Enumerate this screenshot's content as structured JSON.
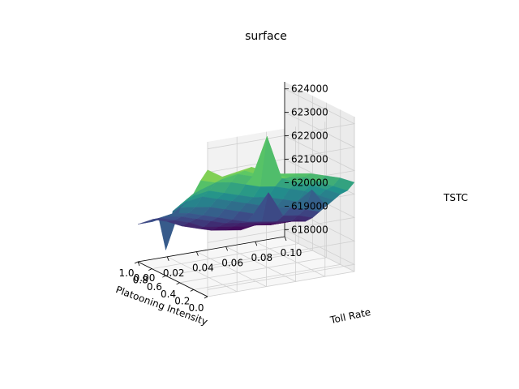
{
  "chart_data": {
    "type": "surface",
    "title": "surface",
    "xlabel": "Platooning Intensity",
    "ylabel": "Toll Rate",
    "zlabel": "TSTC",
    "x_ticks": [
      "0.0",
      "0.2",
      "0.4",
      "0.6",
      "0.8",
      "1.0"
    ],
    "y_ticks": [
      "0.00",
      "0.02",
      "0.04",
      "0.06",
      "0.08",
      "0.10"
    ],
    "z_ticks": [
      "618000",
      "619000",
      "620000",
      "621000",
      "622000",
      "623000",
      "624000"
    ],
    "xlim": [
      0.0,
      1.0
    ],
    "ylim": [
      0.0,
      0.1
    ],
    "zlim": [
      617700,
      624300
    ],
    "colormap": "viridis",
    "colormap_stops": [
      "#440154",
      "#3b528b",
      "#21918c",
      "#5ec962",
      "#fde725"
    ],
    "pane_color": "#f0f0f0",
    "grid": true,
    "x": [
      0.0,
      0.1,
      0.2,
      0.3,
      0.4,
      0.5,
      0.6,
      0.7,
      0.8,
      0.9,
      1.0
    ],
    "y": [
      0.0,
      0.01,
      0.02,
      0.03,
      0.04,
      0.05,
      0.06,
      0.07,
      0.08,
      0.09,
      0.1
    ],
    "z": [
      [
        623100,
        622700,
        622800,
        622900,
        622600,
        622400,
        622300,
        622200,
        622000,
        621800,
        621500
      ],
      [
        622500,
        622300,
        622500,
        622600,
        622300,
        622200,
        622000,
        621900,
        621600,
        621300,
        621000
      ],
      [
        621800,
        622000,
        622200,
        622300,
        622100,
        623700,
        621800,
        621500,
        621300,
        621000,
        620700
      ],
      [
        621400,
        621700,
        621900,
        621800,
        621600,
        621400,
        621300,
        621100,
        620900,
        620600,
        620300
      ],
      [
        621000,
        621300,
        621400,
        621200,
        621000,
        620800,
        620700,
        620500,
        620300,
        620700,
        619900
      ],
      [
        620600,
        620900,
        621000,
        620800,
        620600,
        620400,
        620200,
        620000,
        619900,
        619700,
        619500
      ],
      [
        618800,
        620500,
        620400,
        620300,
        620100,
        619900,
        619700,
        620500,
        619400,
        619300,
        619100
      ],
      [
        620000,
        620100,
        620000,
        619800,
        619600,
        619400,
        619200,
        619100,
        619000,
        618900,
        618800
      ],
      [
        619700,
        619800,
        619700,
        619500,
        619300,
        619100,
        619000,
        618900,
        618800,
        618700,
        618700
      ],
      [
        619500,
        619600,
        619400,
        619200,
        618900,
        618800,
        618700,
        618600,
        618600,
        618500,
        618500
      ],
      [
        619300,
        619400,
        619200,
        618900,
        618700,
        618500,
        618400,
        618300,
        618400,
        618300,
        618300
      ]
    ]
  }
}
